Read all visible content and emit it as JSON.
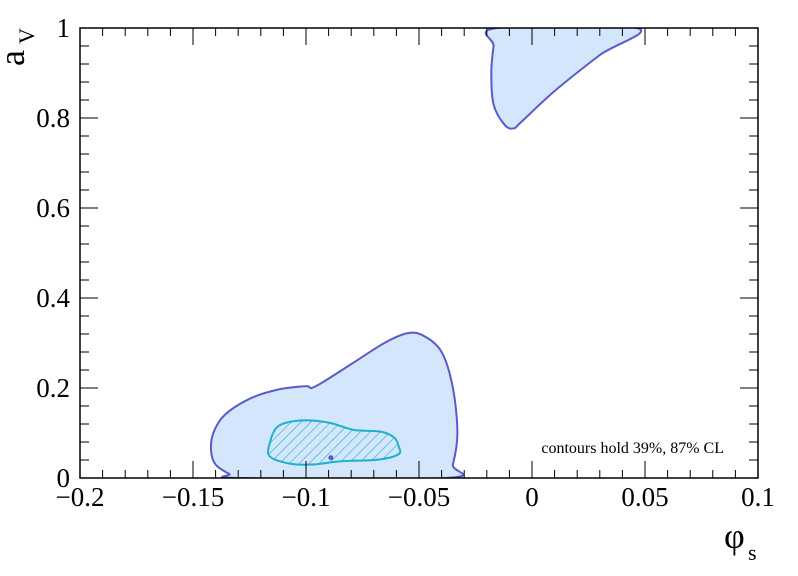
{
  "chart_data": {
    "type": "contour",
    "xlabel": "φ",
    "xlabel_sub": "s",
    "ylabel": "a",
    "ylabel_sub": "V",
    "xlim": [
      -0.2,
      0.1
    ],
    "ylim": [
      0,
      1
    ],
    "x_ticks": [
      -0.2,
      -0.15,
      -0.1,
      -0.05,
      0,
      0.05,
      0.1
    ],
    "x_tick_labels": [
      "−0.2",
      "−0.15",
      "−0.1",
      "−0.05",
      "0",
      "0.05",
      "0.1"
    ],
    "y_ticks": [
      0,
      0.2,
      0.4,
      0.6,
      0.8,
      1
    ],
    "y_tick_labels": [
      "0",
      "0.2",
      "0.4",
      "0.6",
      "0.8",
      "1"
    ],
    "annotation": "contours hold 39%, 87% CL",
    "best_fit": {
      "x": -0.089,
      "y": 0.045
    },
    "contours": [
      {
        "level": "87% CL",
        "fill": "#d4e6fb",
        "stroke": "#5a5acc",
        "hatch": false,
        "points": [
          [
            -0.129,
            0
          ],
          [
            -0.134,
            0.009
          ],
          [
            -0.14,
            0.03
          ],
          [
            -0.142,
            0.06
          ],
          [
            -0.141,
            0.1
          ],
          [
            -0.136,
            0.14
          ],
          [
            -0.125,
            0.176
          ],
          [
            -0.112,
            0.197
          ],
          [
            -0.1,
            0.204
          ],
          [
            -0.096,
            0.203
          ],
          [
            -0.08,
            0.253
          ],
          [
            -0.065,
            0.301
          ],
          [
            -0.055,
            0.322
          ],
          [
            -0.048,
            0.316
          ],
          [
            -0.04,
            0.28
          ],
          [
            -0.035,
            0.2
          ],
          [
            -0.033,
            0.1
          ],
          [
            -0.035,
            0.03
          ],
          [
            -0.038,
            0
          ]
        ]
      },
      {
        "level": "87% CL",
        "fill": "#d4e6fb",
        "stroke": "#5a5acc",
        "hatch": false,
        "points": [
          [
            -0.0155,
            1.0
          ],
          [
            0.0465,
            1.0
          ],
          [
            0.03,
            0.94
          ],
          [
            0.01,
            0.86
          ],
          [
            -0.005,
            0.79
          ],
          [
            -0.008,
            0.777
          ],
          [
            -0.012,
            0.784
          ],
          [
            -0.017,
            0.83
          ],
          [
            -0.018,
            0.9
          ],
          [
            -0.017,
            0.96
          ]
        ]
      },
      {
        "level": "39% CL",
        "fill": "#d4e6fb",
        "stroke": "#1fb0cc",
        "hatch": true,
        "points": [
          [
            -0.116,
            0.078
          ],
          [
            -0.113,
            0.112
          ],
          [
            -0.107,
            0.125
          ],
          [
            -0.099,
            0.128
          ],
          [
            -0.089,
            0.122
          ],
          [
            -0.079,
            0.107
          ],
          [
            -0.067,
            0.103
          ],
          [
            -0.061,
            0.09
          ],
          [
            -0.059,
            0.07
          ],
          [
            -0.059,
            0.053
          ],
          [
            -0.068,
            0.041
          ],
          [
            -0.085,
            0.037
          ],
          [
            -0.097,
            0.03
          ],
          [
            -0.107,
            0.032
          ],
          [
            -0.116,
            0.048
          ]
        ]
      }
    ]
  },
  "colors": {
    "fill": "#d4e6fb",
    "outer_stroke": "#5a5acc",
    "inner_stroke": "#1fb0cc",
    "best_fit_marker": "#5a5acc"
  }
}
